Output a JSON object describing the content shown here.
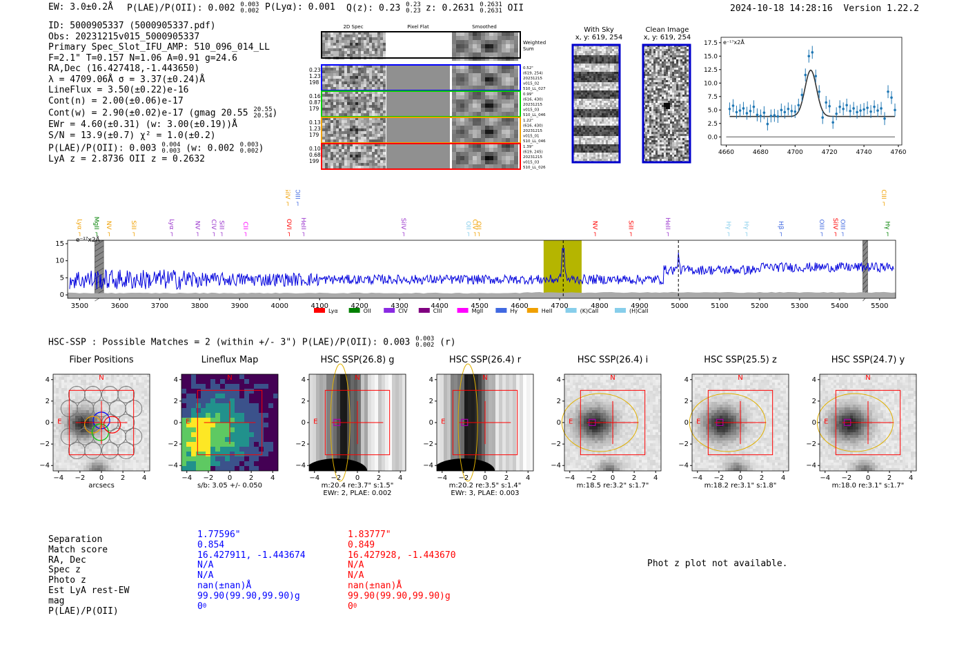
{
  "header": {
    "ew": "EW: 3.0±0.2Å",
    "plae": "P(LAE)/P(OII): 0.002",
    "plae_hi": "0.003",
    "plae_lo": "0.002",
    "plya": "P(Lyα): 0.001",
    "qz": "Q(z): 0.23",
    "qz_hi": "0.23",
    "qz_lo": "0.23",
    "z": "z: 0.2631",
    "z_hi": "0.2631",
    "z_lo": "0.2631",
    "z_line": "OII",
    "timestamp": "2024-10-18 14:28:16",
    "version": "Version 1.22.2"
  },
  "info": {
    "lines": [
      "ID: 5000905337 (5000905337.pdf)",
      "Obs: 20231215v015_5000905337",
      "Primary Spec_Slot_IFU_AMP: 510_096_014_LL",
      "F=2.1\"  T=0.157  N=1.06  A=0.91  g=24.6",
      "RA,Dec (16.427418,-1.443650)",
      "λ = 4709.06Å  σ = 3.37(±0.24)Å",
      "LineFlux = 3.50(±0.22)e-16",
      "Cont(n) = 2.00(±0.06)e-17"
    ],
    "contw": "Cont(w) = 2.90(±0.02)e-17 (gmag 20.55",
    "contw_hi": "20.55",
    "contw_lo": "20.54",
    "ewr": "EWr = 4.60(±0.31) (w: 3.00(±0.19))Å",
    "sn": "S/N = 13.9(±0.7)  χ² = 1.0(±0.2)",
    "plae2": "P(LAE)/P(OII): 0.003",
    "plae2_hi": "0.004",
    "plae2_lo": "0.003",
    "plae2_w": "(w: 0.002",
    "plae2_w_hi": "0.003",
    "plae2_w_lo": "0.002",
    "lyaz": "LyA z = 2.8736  OII z = 0.2632"
  },
  "cutouts": {
    "col_headers": [
      "2D Spec",
      "Pixel Flat",
      "Smoothed"
    ],
    "weighted": "Weighted Sum",
    "rows": [
      {
        "left": [
          "0.23",
          "1.23",
          "198"
        ],
        "right": [
          "0.52\"",
          "(619, 254)",
          "20231215",
          "v015_02",
          "510_LL_027"
        ],
        "color": "#0000ff"
      },
      {
        "left": [
          "0.16",
          "0.87",
          "179"
        ],
        "right": [
          "0.99\"",
          "(616, 430)",
          "20231215",
          "v015_03",
          "510_LL_046"
        ],
        "color": "#00cc00"
      },
      {
        "left": [
          "0.13",
          "1.23",
          "179"
        ],
        "right": [
          "1.22\"",
          "(616, 430)",
          "20231215",
          "v015_01",
          "510_LL_046"
        ],
        "color": "#f0a000"
      },
      {
        "left": [
          "0.10",
          "0.68",
          "199"
        ],
        "right": [
          "1.39\"",
          "(619, 245)",
          "20231215",
          "v015_03",
          "510_LL_026"
        ],
        "color": "#ff0000"
      }
    ]
  },
  "sky": {
    "with_sky": "With Sky",
    "with_sky_xy": "x, y: 619, 254",
    "clean": "Clean Image",
    "clean_xy": "x, y: 619, 254"
  },
  "zoom_chart": {
    "type": "scatter",
    "ylabel": "e⁻¹⁷x2Å",
    "xlim": [
      4657,
      4762
    ],
    "ylim": [
      -1.5,
      18.5
    ],
    "xticks": [
      4660,
      4680,
      4700,
      4720,
      4740,
      4760
    ],
    "yticks": [
      0.0,
      2.5,
      5.0,
      7.5,
      10.0,
      12.5,
      15.0,
      17.5
    ],
    "x": [
      4662,
      4664,
      4666,
      4668,
      4670,
      4672,
      4674,
      4676,
      4678,
      4680,
      4682,
      4684,
      4686,
      4688,
      4690,
      4692,
      4694,
      4696,
      4698,
      4700,
      4702,
      4704,
      4706,
      4708,
      4710,
      4712,
      4714,
      4716,
      4718,
      4720,
      4722,
      4724,
      4726,
      4728,
      4730,
      4732,
      4734,
      4736,
      4738,
      4740,
      4742,
      4744,
      4746,
      4748,
      4750,
      4752,
      4754,
      4756,
      4758
    ],
    "y": [
      5.2,
      5.8,
      4.6,
      4.9,
      5.3,
      4.4,
      4.8,
      5.6,
      4.1,
      3.9,
      4.5,
      2.4,
      3.9,
      4.0,
      3.8,
      5.0,
      4.6,
      5.2,
      4.8,
      4.7,
      5.9,
      7.8,
      11.5,
      15.0,
      15.7,
      11.3,
      8.4,
      3.6,
      6.4,
      5.7,
      2.7,
      4.3,
      5.6,
      5.2,
      5.9,
      4.8,
      5.3,
      4.6,
      4.9,
      5.1,
      5.4,
      4.7,
      5.6,
      4.9,
      5.3,
      3.4,
      8.4,
      7.3,
      5.0
    ],
    "fit": {
      "center": 4709.1,
      "sigma": 3.37,
      "amp": 8.6,
      "base": 3.8
    }
  },
  "spectrum": {
    "ylabel": "e⁻¹⁷x2Å",
    "xlim": [
      3470,
      5540
    ],
    "ylim": [
      -1,
      16
    ],
    "xticks": [
      3500,
      3600,
      3700,
      3800,
      3900,
      4000,
      4100,
      4200,
      4300,
      4400,
      4500,
      4600,
      4700,
      4800,
      4900,
      5000,
      5100,
      5200,
      5300,
      5400,
      5500
    ],
    "yticks": [
      0,
      5,
      10,
      15
    ],
    "highlight": [
      4660,
      4755
    ],
    "dashed": [
      4709,
      4997
    ],
    "hatched": [
      3538,
      3560,
      5458,
      5470
    ],
    "lines": [
      {
        "label": "Lyα",
        "w": 3490,
        "c": "#f0a000",
        "row": 0
      },
      {
        "label": "MgII",
        "w": 3532,
        "c": "#008000",
        "row": 0
      },
      {
        "label": "NV",
        "w": 3563,
        "c": "#f0a000",
        "row": 0
      },
      {
        "label": "SiII",
        "w": 3625,
        "c": "#f0a000",
        "row": 0
      },
      {
        "label": "Lyα",
        "w": 3720,
        "c": "#9933cc",
        "row": 0
      },
      {
        "label": "NV",
        "w": 3785,
        "c": "#9933cc",
        "row": 0
      },
      {
        "label": "CIV",
        "w": 3825,
        "c": "#9933cc",
        "row": 0
      },
      {
        "label": "SiII",
        "w": 3845,
        "c": "#9933cc",
        "row": 0
      },
      {
        "label": "CII",
        "w": 3905,
        "c": "#ff00ff",
        "row": 0
      },
      {
        "label": "SiIV",
        "w": 4010,
        "c": "#f0a000",
        "row": 1
      },
      {
        "label": "OIII",
        "w": 4035,
        "c": "#4169e1",
        "row": 1
      },
      {
        "label": "OVI",
        "w": 4013,
        "c": "#ff0000",
        "row": 0
      },
      {
        "label": "HeII",
        "w": 4050,
        "c": "#9933cc",
        "row": 0
      },
      {
        "label": "SiIV",
        "w": 4300,
        "c": "#9933cc",
        "row": 0
      },
      {
        "label": "OII",
        "w": 4462,
        "c": "#87ceeb",
        "row": 0
      },
      {
        "label": "CIV",
        "w": 4478,
        "c": "#f0a000",
        "row": 0
      },
      {
        "label": "OII",
        "w": 4488,
        "c": "#f0a000",
        "row": 0
      },
      {
        "label": "NV",
        "w": 4778,
        "c": "#ff0000",
        "row": 0
      },
      {
        "label": "SiII",
        "w": 4868,
        "c": "#ff0000",
        "row": 0
      },
      {
        "label": "HeII",
        "w": 4960,
        "c": "#9933cc",
        "row": 0
      },
      {
        "label": "Hγ",
        "w": 5112,
        "c": "#87ceeb",
        "row": 0
      },
      {
        "label": "Hγ",
        "w": 5157,
        "c": "#87ceeb",
        "row": 0
      },
      {
        "label": "Hβ",
        "w": 5243,
        "c": "#4169e1",
        "row": 0
      },
      {
        "label": "OIII",
        "w": 5345,
        "c": "#4169e1",
        "row": 0
      },
      {
        "label": "SiIV",
        "w": 5380,
        "c": "#ff0000",
        "row": 0
      },
      {
        "label": "OIII",
        "w": 5398,
        "c": "#4169e1",
        "row": 0
      },
      {
        "label": "CIII",
        "w": 5500,
        "c": "#f0a000",
        "row": 1
      },
      {
        "label": "Hγ",
        "w": 5510,
        "c": "#008000",
        "row": 0
      }
    ],
    "legend": [
      {
        "label": "Lyα",
        "c": "#ff0000"
      },
      {
        "label": "OII",
        "c": "#008000"
      },
      {
        "label": "CIV",
        "c": "#8a2be2"
      },
      {
        "label": "CIII",
        "c": "#800080"
      },
      {
        "label": "MgII",
        "c": "#ff00ff"
      },
      {
        "label": "Hγ",
        "c": "#4169e1"
      },
      {
        "label": "HeII",
        "c": "#f0a000"
      },
      {
        "label": "(K)CaII",
        "c": "#87ceeb"
      },
      {
        "label": "(H)CaII",
        "c": "#87ceeb"
      }
    ]
  },
  "hsc": {
    "summary": "HSC-SSP : Possible Matches = 2 (within +/- 3\")  P(LAE)/P(OII): 0.003",
    "summary_hi": "0.003",
    "summary_lo": "0.002",
    "summary_band": "(r)",
    "panels": [
      {
        "title": "Fiber Positions",
        "cap1": "arcsecs",
        "cap2": ""
      },
      {
        "title": "Lineflux Map",
        "cap1": "s/b: 3.05 +/- 0.050",
        "cap2": ""
      },
      {
        "title": "HSC SSP(26.8) g",
        "cap1": "m:20.4  re:3.7\"  s:1.5\"",
        "cap2": "EWr: 2, PLAE: 0.002"
      },
      {
        "title": "HSC SSP(26.4) r",
        "cap1": "m:20.2  re:3.5\"  s:1.4\"",
        "cap2": "EWr: 3, PLAE: 0.003"
      },
      {
        "title": "HSC SSP(26.4) i",
        "cap1": "m:18.5  re:3.2\"  s:1.7\"",
        "cap2": ""
      },
      {
        "title": "HSC SSP(25.5) z",
        "cap1": "m:18.2  re:3.1\"  s:1.8\"",
        "cap2": ""
      },
      {
        "title": "HSC SSP(24.7) y",
        "cap1": "m:18.0  re:3.1\"  s:1.7\"",
        "cap2": ""
      }
    ],
    "ticks": [
      "−4",
      "−2",
      "0",
      "2",
      "4"
    ],
    "north": "N",
    "east": "E"
  },
  "matches": {
    "labels": [
      "Separation",
      "Match score",
      "RA, Dec",
      "Spec z",
      "Photo z",
      "Est LyA rest-EW",
      "mag",
      "P(LAE)/P(OII)"
    ],
    "m1": [
      "1.77596\"",
      "0.854",
      "16.427911, -1.443674",
      "N/A",
      "N/A",
      "nan(±nan)Å",
      "99.90(99.90,99.90)g",
      "0"
    ],
    "m2": [
      "1.83777\"",
      "0.849",
      "16.427928, -1.443670",
      "N/A",
      "N/A",
      "nan(±nan)Å",
      "99.90(99.90,99.90)g",
      "0"
    ],
    "zero_sub": "0",
    "photz": "Phot z plot not available."
  }
}
